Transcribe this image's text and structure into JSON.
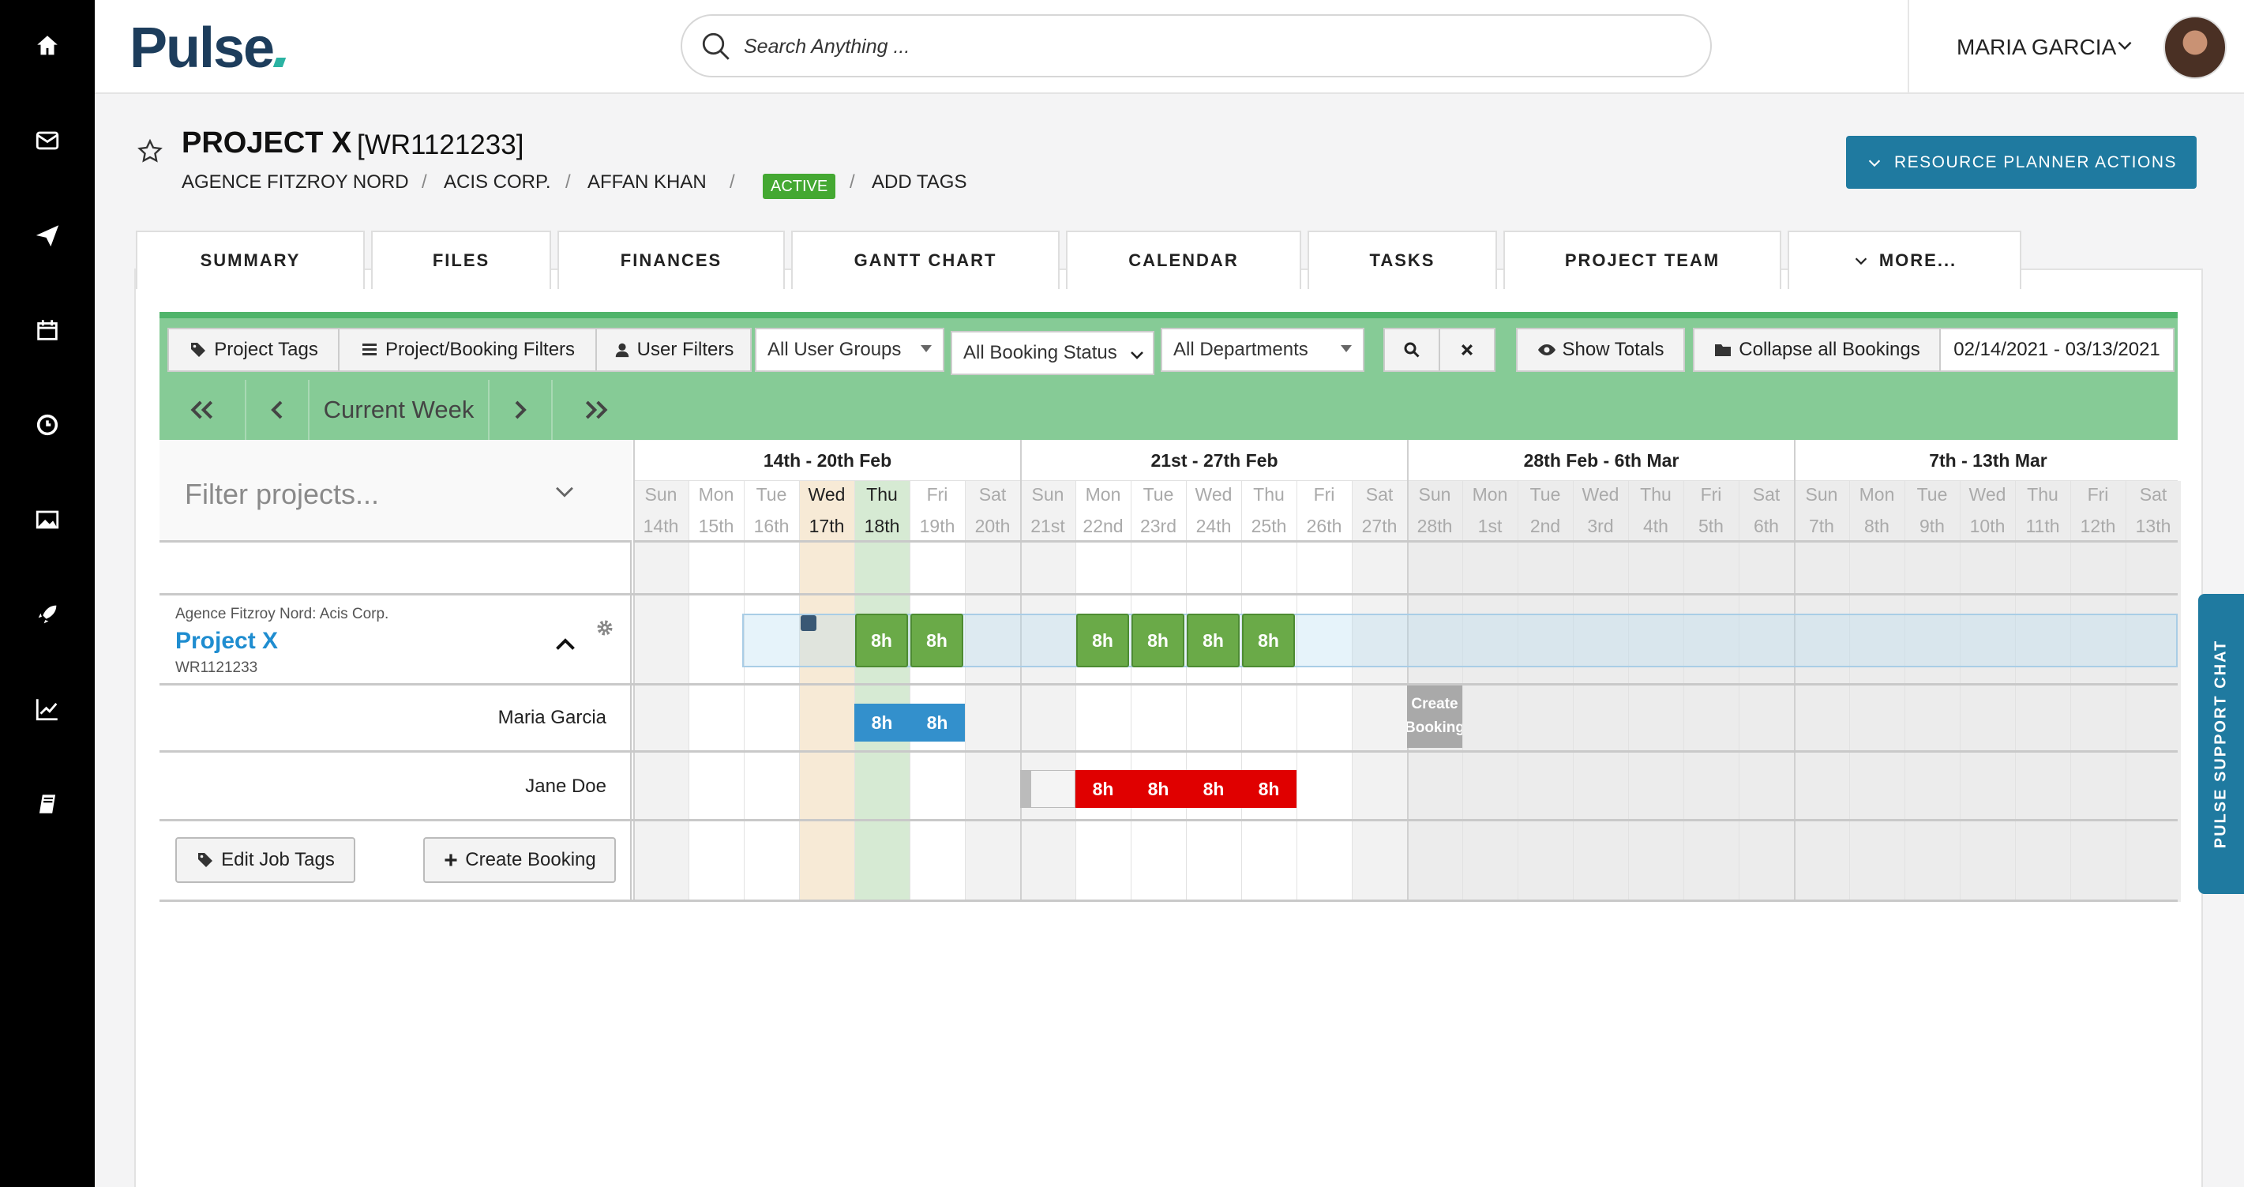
{
  "app": {
    "logo": "Pulse"
  },
  "search": {
    "placeholder": "Search Anything ..."
  },
  "user": {
    "name": "MARIA GARCIA"
  },
  "project": {
    "title": "PROJECT X",
    "code": "[WR1121233]",
    "breadcrumb": [
      "AGENCE FITZROY NORD",
      "ACIS CORP.",
      "AFFAN KHAN"
    ],
    "status": "ACTIVE",
    "add_tags": "ADD TAGS"
  },
  "actions_button": "RESOURCE PLANNER ACTIONS",
  "tabs": [
    "SUMMARY",
    "FILES",
    "FINANCES",
    "GANTT CHART",
    "CALENDAR",
    "TASKS",
    "PROJECT TEAM",
    "MORE..."
  ],
  "toolbar": {
    "project_tags": "Project Tags",
    "booking_filters": "Project/Booking Filters",
    "user_filters": "User Filters",
    "user_groups": "All User Groups",
    "booking_status": "All Booking Status",
    "departments": "All Departments",
    "show_totals": "Show Totals",
    "collapse": "Collapse all Bookings",
    "date_range": "02/14/2021 - 03/13/2021",
    "current_week": "Current Week"
  },
  "filter": {
    "placeholder": "Filter projects..."
  },
  "weeks": [
    "14th - 20th Feb",
    "21st - 27th Feb",
    "28th Feb - 6th Mar",
    "7th - 13th Mar"
  ],
  "days": [
    {
      "name": "Sun",
      "num": "14th"
    },
    {
      "name": "Mon",
      "num": "15th"
    },
    {
      "name": "Tue",
      "num": "16th"
    },
    {
      "name": "Wed",
      "num": "17th"
    },
    {
      "name": "Thu",
      "num": "18th"
    },
    {
      "name": "Fri",
      "num": "19th"
    },
    {
      "name": "Sat",
      "num": "20th"
    },
    {
      "name": "Sun",
      "num": "21st"
    },
    {
      "name": "Mon",
      "num": "22nd"
    },
    {
      "name": "Tue",
      "num": "23rd"
    },
    {
      "name": "Wed",
      "num": "24th"
    },
    {
      "name": "Thu",
      "num": "25th"
    },
    {
      "name": "Fri",
      "num": "26th"
    },
    {
      "name": "Sat",
      "num": "27th"
    },
    {
      "name": "Sun",
      "num": "28th"
    },
    {
      "name": "Mon",
      "num": "1st"
    },
    {
      "name": "Tue",
      "num": "2nd"
    },
    {
      "name": "Wed",
      "num": "3rd"
    },
    {
      "name": "Thu",
      "num": "4th"
    },
    {
      "name": "Fri",
      "num": "5th"
    },
    {
      "name": "Sat",
      "num": "6th"
    },
    {
      "name": "Sun",
      "num": "7th"
    },
    {
      "name": "Mon",
      "num": "8th"
    },
    {
      "name": "Tue",
      "num": "9th"
    },
    {
      "name": "Wed",
      "num": "10th"
    },
    {
      "name": "Thu",
      "num": "11th"
    },
    {
      "name": "Fri",
      "num": "12th"
    },
    {
      "name": "Sat",
      "num": "13th"
    }
  ],
  "project_row": {
    "client": "Agence Fitzroy Nord: Acis Corp.",
    "name": "Project X",
    "code": "WR1121233"
  },
  "resources": [
    "Maria Garcia",
    "Jane Doe"
  ],
  "bookings": {
    "project_hours": [
      "8h",
      "8h",
      "8h",
      "8h",
      "8h",
      "8h"
    ],
    "maria_hours": [
      "8h",
      "8h"
    ],
    "jane_hours": [
      "8h",
      "8h",
      "8h",
      "8h"
    ],
    "create_booking_cell": "Create Booking"
  },
  "buttons": {
    "edit_job_tags": "Edit Job Tags",
    "create_booking": "Create Booking"
  },
  "chat": {
    "label": "PULSE SUPPORT CHAT"
  },
  "colors": {
    "green": "#86cb96",
    "teal": "#1f7aa0",
    "booking_green": "#6aaa48",
    "booking_blue": "#3390cc",
    "booking_red": "#e00000"
  }
}
